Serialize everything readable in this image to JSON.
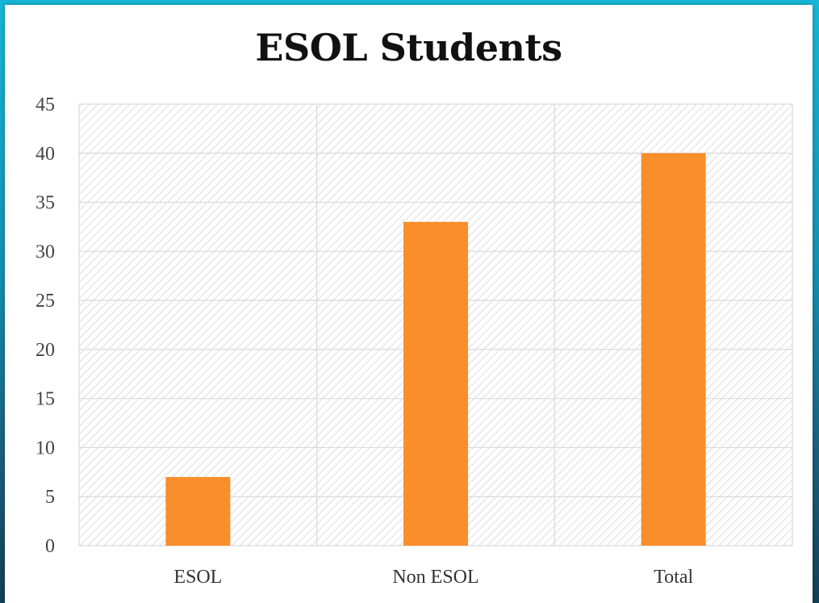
{
  "chart_data": {
    "type": "bar",
    "title": "ESOL Students",
    "categories": [
      "ESOL",
      "Non ESOL",
      "Total"
    ],
    "values": [
      7,
      33,
      40
    ],
    "ylim": [
      0,
      45
    ],
    "yticks": [
      0,
      5,
      10,
      15,
      20,
      25,
      30,
      35,
      40,
      45
    ],
    "xlabel": "",
    "ylabel": "",
    "grid": true,
    "legend": "none",
    "colors": {
      "bar": "#f98e2b",
      "grid": "#d9d9d9",
      "hatch": "#cfcfcf",
      "background_top": "#17b6d6",
      "background_bottom": "#123f55"
    }
  }
}
